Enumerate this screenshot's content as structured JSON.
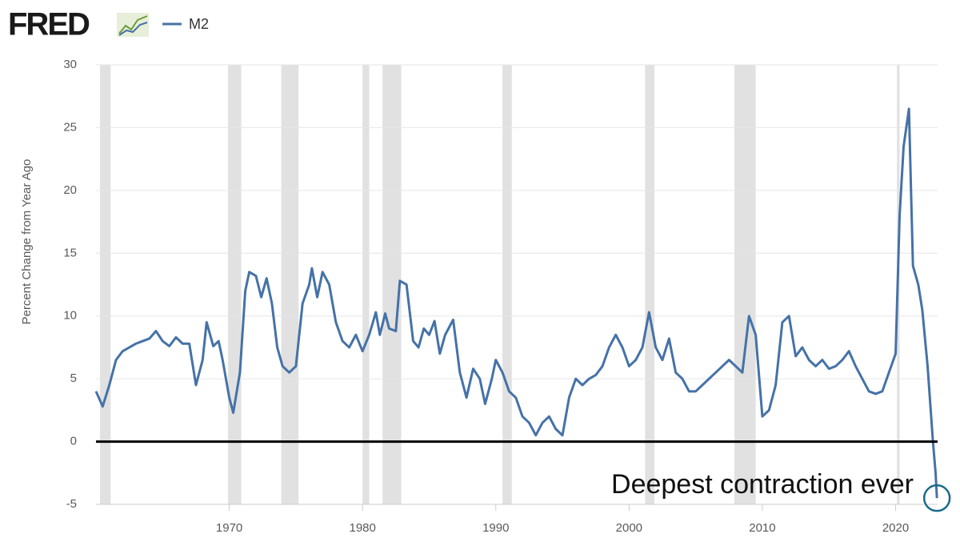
{
  "chart_data": {
    "type": "line",
    "brand": "FRED",
    "y_axis_label": "Percent Change from Year Ago",
    "annotation": "Deepest contraction ever",
    "xlim": [
      1960,
      2023.15
    ],
    "ylim": [
      -5,
      30
    ],
    "xticks": [
      1970,
      1980,
      1990,
      2000,
      2010,
      2020
    ],
    "yticks": [
      -5,
      0,
      5,
      10,
      15,
      20,
      25,
      30
    ],
    "grid": true,
    "reference_line": 0,
    "recessions": [
      [
        1960.3,
        1961.1
      ],
      [
        1969.9,
        1970.9
      ],
      [
        1973.9,
        1975.2
      ],
      [
        1980.0,
        1980.5
      ],
      [
        1981.5,
        1982.9
      ],
      [
        1990.5,
        1991.2
      ],
      [
        2001.2,
        2001.9
      ],
      [
        2007.9,
        2009.5
      ],
      [
        2020.1,
        2020.3
      ]
    ],
    "x": [
      1960.0,
      1960.5,
      1961.0,
      1961.5,
      1962.0,
      1962.5,
      1963.0,
      1963.5,
      1964.0,
      1964.5,
      1965.0,
      1965.5,
      1966.0,
      1966.5,
      1967.0,
      1967.5,
      1968.0,
      1968.3,
      1968.8,
      1969.2,
      1969.5,
      1970.0,
      1970.3,
      1970.8,
      1971.2,
      1971.5,
      1972.0,
      1972.4,
      1972.8,
      1973.2,
      1973.6,
      1974.0,
      1974.5,
      1975.0,
      1975.5,
      1976.0,
      1976.2,
      1976.6,
      1977.0,
      1977.5,
      1978.0,
      1978.5,
      1979.0,
      1979.5,
      1980.0,
      1980.5,
      1981.0,
      1981.3,
      1981.7,
      1982.0,
      1982.5,
      1982.8,
      1983.3,
      1983.8,
      1984.2,
      1984.6,
      1985.0,
      1985.4,
      1985.8,
      1986.2,
      1986.8,
      1987.3,
      1987.8,
      1988.3,
      1988.8,
      1989.2,
      1989.7,
      1990.0,
      1990.5,
      1991.0,
      1991.5,
      1992.0,
      1992.5,
      1993.0,
      1993.5,
      1994.0,
      1994.5,
      1995.0,
      1995.5,
      1996.0,
      1996.5,
      1997.0,
      1997.5,
      1998.0,
      1998.5,
      1999.0,
      1999.5,
      2000.0,
      2000.5,
      2001.0,
      2001.5,
      2002.0,
      2002.5,
      2003.0,
      2003.5,
      2004.0,
      2004.5,
      2005.0,
      2005.5,
      2006.0,
      2006.5,
      2007.0,
      2007.5,
      2008.0,
      2008.5,
      2009.0,
      2009.5,
      2010.0,
      2010.5,
      2011.0,
      2011.5,
      2012.0,
      2012.5,
      2013.0,
      2013.5,
      2014.0,
      2014.5,
      2015.0,
      2015.5,
      2016.0,
      2016.5,
      2017.0,
      2017.5,
      2018.0,
      2018.5,
      2019.0,
      2019.5,
      2020.0,
      2020.3,
      2020.6,
      2021.0,
      2021.3,
      2021.7,
      2022.0,
      2022.4,
      2022.8,
      2023.0,
      2023.1
    ],
    "series": [
      {
        "name": "M2",
        "color": "#4572a7",
        "values": [
          4.0,
          2.8,
          4.5,
          6.5,
          7.2,
          7.5,
          7.8,
          8.0,
          8.2,
          8.8,
          8.0,
          7.6,
          8.3,
          7.8,
          7.8,
          4.5,
          6.5,
          9.5,
          7.6,
          8.0,
          6.5,
          3.5,
          2.3,
          5.5,
          12.0,
          13.5,
          13.2,
          11.5,
          13.0,
          11.0,
          7.5,
          6.0,
          5.5,
          6.0,
          11.0,
          12.5,
          13.8,
          11.5,
          13.5,
          12.5,
          9.5,
          8.0,
          7.5,
          8.5,
          7.2,
          8.5,
          10.3,
          8.5,
          10.2,
          9.0,
          8.8,
          12.8,
          12.5,
          8.0,
          7.5,
          9.0,
          8.5,
          9.6,
          7.0,
          8.5,
          9.7,
          5.5,
          3.5,
          5.8,
          5.0,
          3.0,
          5.0,
          6.5,
          5.5,
          4.0,
          3.5,
          2.0,
          1.5,
          0.5,
          1.5,
          2.0,
          1.0,
          0.5,
          3.5,
          5.0,
          4.5,
          5.0,
          5.3,
          6.0,
          7.5,
          8.5,
          7.5,
          6.0,
          6.5,
          7.5,
          10.3,
          7.5,
          6.5,
          8.2,
          5.5,
          5.0,
          4.0,
          4.0,
          4.5,
          5.0,
          5.5,
          6.0,
          6.5,
          6.0,
          5.5,
          10.0,
          8.5,
          2.0,
          2.5,
          4.5,
          9.5,
          10.0,
          6.8,
          7.5,
          6.5,
          6.0,
          6.5,
          5.8,
          6.0,
          6.5,
          7.2,
          6.0,
          5.0,
          4.0,
          3.8,
          4.0,
          5.5,
          7.0,
          18.0,
          23.5,
          26.5,
          14.0,
          12.5,
          10.5,
          6.0,
          0.0,
          -2.5,
          -4.5
        ]
      }
    ]
  }
}
